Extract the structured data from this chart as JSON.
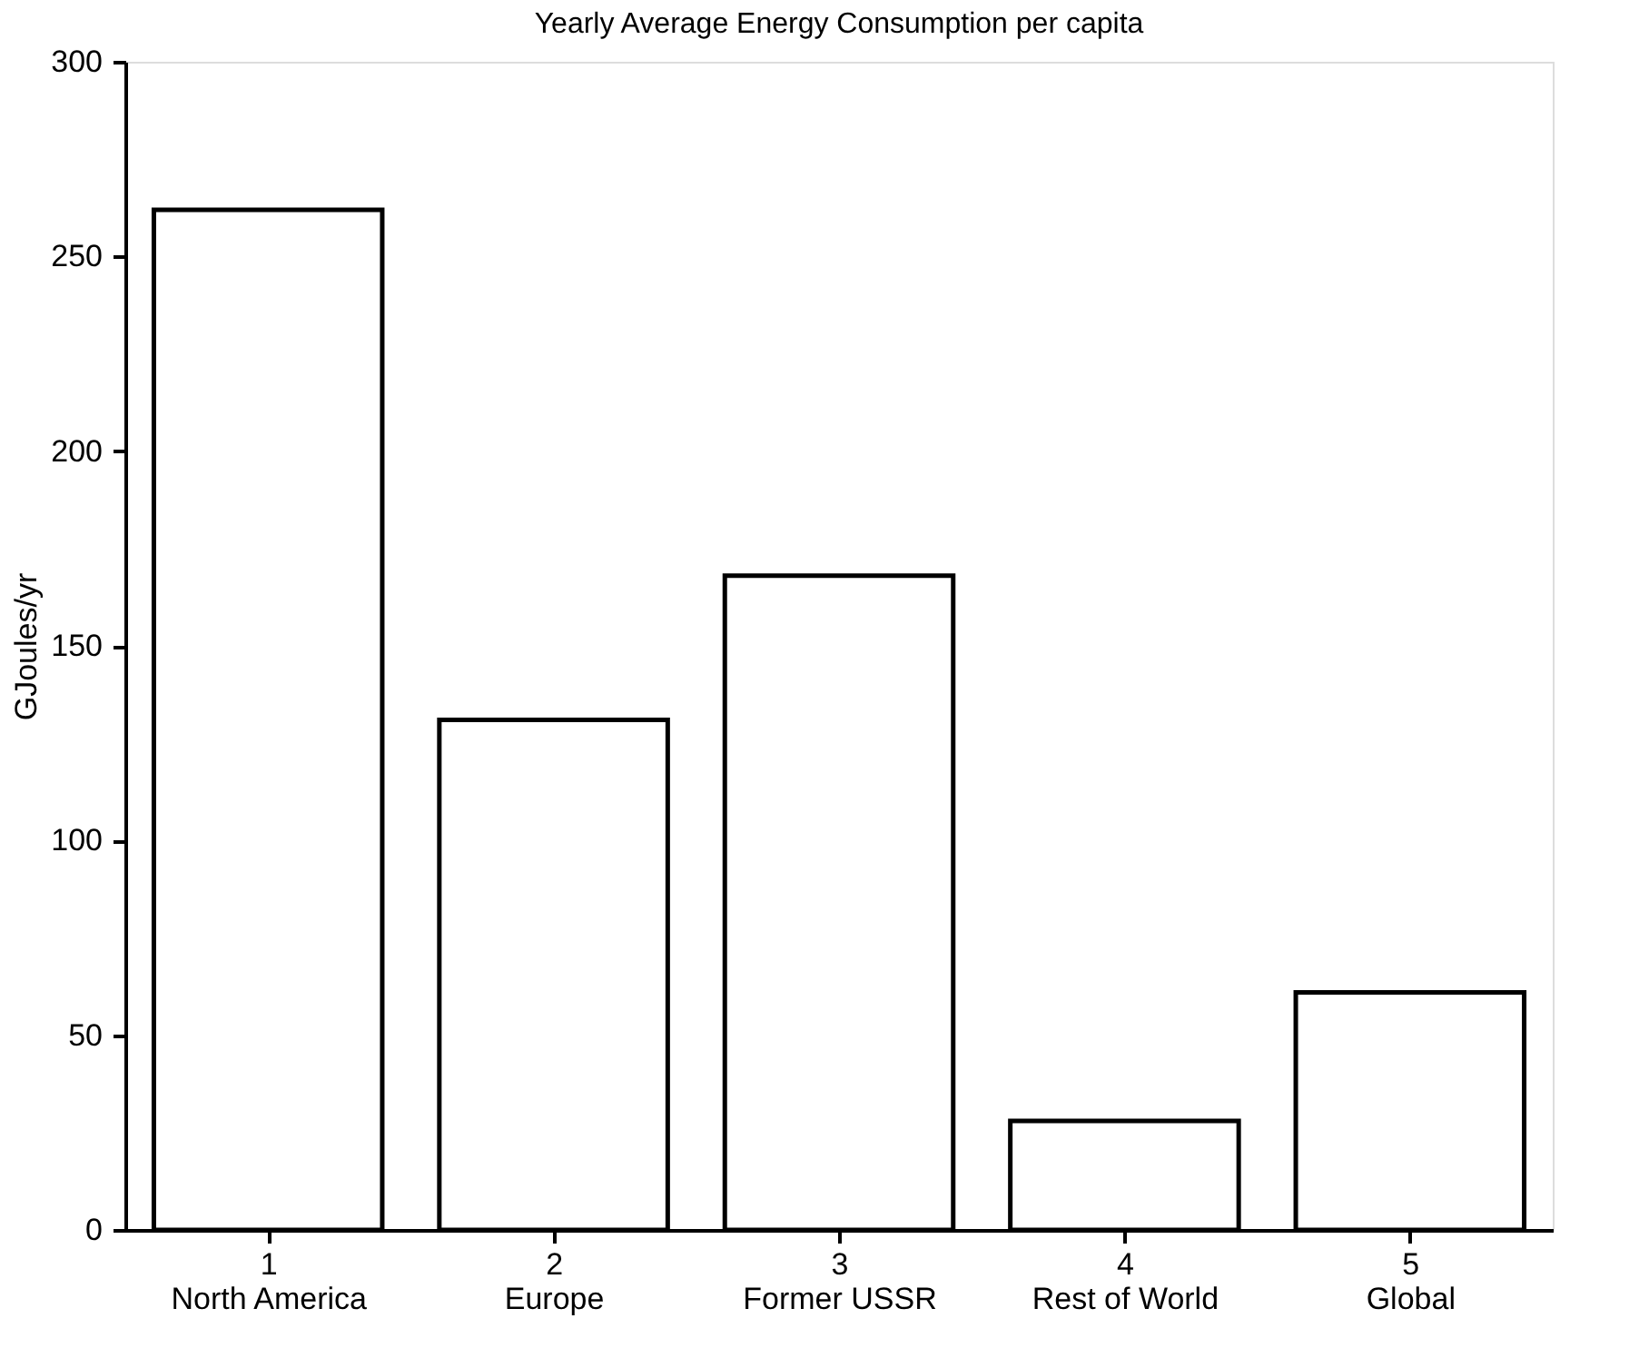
{
  "chart_data": {
    "type": "bar",
    "title": "Yearly Average Energy Consumption per capita",
    "ylabel": "GJoules/yr",
    "categories": [
      "1\nNorth America",
      "2\nEurope",
      "3\nFormer USSR",
      "4\nRest of World",
      "5\nGlobal"
    ],
    "values": [
      262,
      131,
      168,
      28,
      61
    ],
    "color": "#ffffff",
    "ylim": [
      0,
      300
    ],
    "yticks": [
      0,
      50,
      100,
      150,
      200,
      250,
      300
    ],
    "grid": false
  }
}
